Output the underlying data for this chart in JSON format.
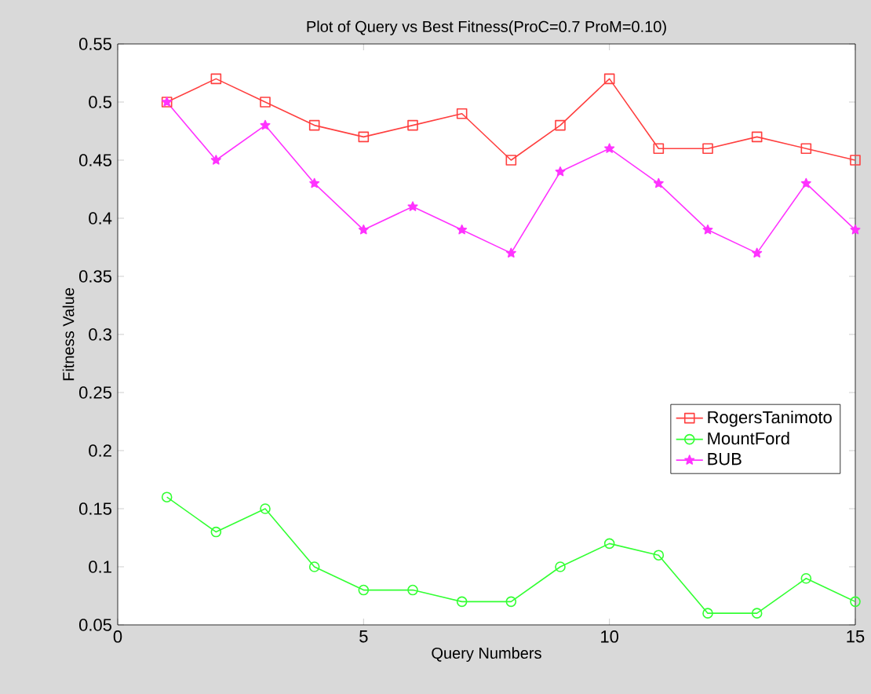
{
  "chart_data": {
    "type": "line",
    "title": "Plot of Query vs Best Fitness(ProC=0.7 ProM=0.10)",
    "xlabel": "Query Numbers",
    "ylabel": "Fitness Value",
    "x": [
      1,
      2,
      3,
      4,
      5,
      6,
      7,
      8,
      9,
      10,
      11,
      12,
      13,
      14,
      15
    ],
    "xlim": [
      0,
      15
    ],
    "xticks": [
      0,
      5,
      10,
      15
    ],
    "ylim": [
      0.05,
      0.55
    ],
    "yticks": [
      0.05,
      0.1,
      0.15,
      0.2,
      0.25,
      0.3,
      0.35,
      0.4,
      0.45,
      0.5,
      0.55
    ],
    "grid": false,
    "legend": "right",
    "line_style": "solid",
    "series": [
      {
        "name": "RogersTanimoto",
        "color": "#ff4040",
        "marker": "square",
        "values": [
          0.5,
          0.52,
          0.5,
          0.48,
          0.47,
          0.48,
          0.49,
          0.45,
          0.48,
          0.52,
          0.46,
          0.46,
          0.47,
          0.46,
          0.45
        ]
      },
      {
        "name": "MountFord",
        "color": "#33ff33",
        "marker": "circle",
        "values": [
          0.16,
          0.13,
          0.15,
          0.1,
          0.08,
          0.08,
          0.07,
          0.07,
          0.1,
          0.12,
          0.11,
          0.06,
          0.06,
          0.09,
          0.07
        ]
      },
      {
        "name": "BUB",
        "color": "#ff33ff",
        "marker": "star",
        "values": [
          0.5,
          0.45,
          0.48,
          0.43,
          0.39,
          0.41,
          0.39,
          0.37,
          0.44,
          0.46,
          0.43,
          0.39,
          0.37,
          0.43,
          0.39
        ]
      }
    ]
  }
}
